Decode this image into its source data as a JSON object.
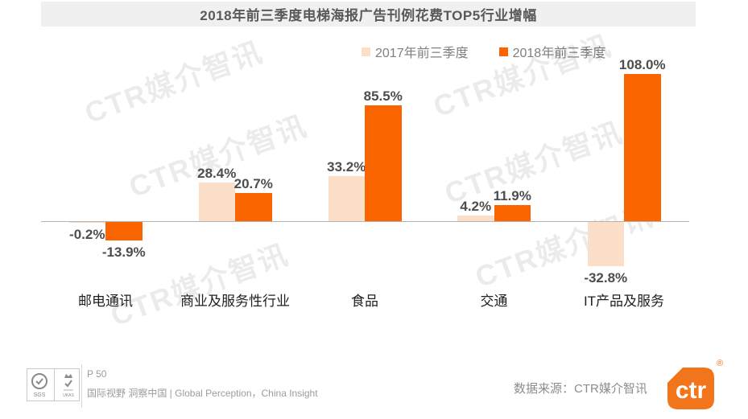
{
  "title": "2018年前三季度电梯海报广告刊例花费TOP5行业增幅",
  "colors": {
    "series_2017": "#FCDFC9",
    "series_2018": "#FB6500",
    "brand_orange": "#F2741B",
    "title_bg": "#F0F0F0"
  },
  "legend": [
    {
      "label": "2017年前三季度",
      "color": "#FCDFC9"
    },
    {
      "label": "2018年前三季度",
      "color": "#FB6500"
    }
  ],
  "chart_data": {
    "type": "bar",
    "categories": [
      "邮电通讯",
      "商业及服务性行业",
      "食品",
      "交通",
      "IT产品及服务"
    ],
    "series": [
      {
        "name": "2017年前三季度",
        "color": "#FCDFC9",
        "values": [
          -0.2,
          28.4,
          33.2,
          4.2,
          -32.8
        ],
        "labels": [
          "-0.2%",
          "28.4%",
          "33.2%",
          "4.2%",
          "-32.8%"
        ]
      },
      {
        "name": "2018年前三季度",
        "color": "#FB6500",
        "values": [
          -13.9,
          20.7,
          85.5,
          11.9,
          108.0
        ],
        "labels": [
          "-13.9%",
          "20.7%",
          "85.5%",
          "11.9%",
          "108.0%"
        ]
      }
    ],
    "unit": "%",
    "title": "2018年前三季度电梯海报广告刊例花费TOP5行业增幅",
    "xlabel": "",
    "ylabel": "",
    "ylim": [
      -40,
      115
    ],
    "grid": false,
    "baseline": 0,
    "legend_position": "top"
  },
  "watermark": {
    "text": "CTR媒介智讯"
  },
  "footer": {
    "page": "P 50",
    "tagline": "国际视野 洞察中国 | Global Perception，China Insight",
    "source": "数据来源：CTR媒介智讯",
    "logo_text": "ctr",
    "registered_mark": "®",
    "logo_color": "#F2741B",
    "cert1": "SGS",
    "cert2": "UKAS"
  }
}
